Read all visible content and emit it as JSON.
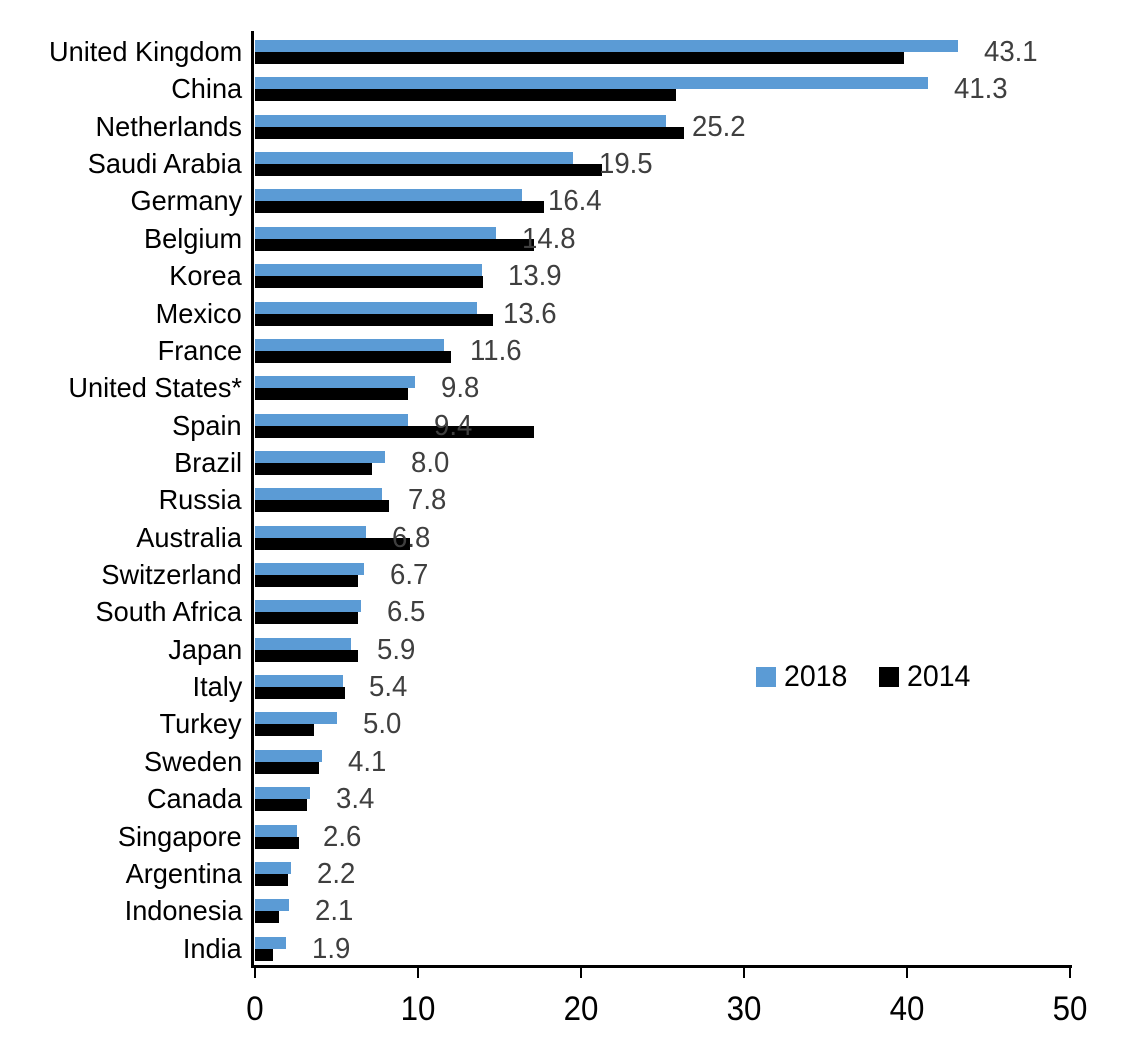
{
  "chart_data": {
    "type": "bar",
    "orientation": "horizontal",
    "title": "",
    "xlabel": "",
    "ylabel": "",
    "xlim": [
      0,
      50
    ],
    "xticks": [
      "0",
      "10",
      "20",
      "30",
      "40",
      "50"
    ],
    "grid": false,
    "legend_position": "middle-right",
    "axis_color": "#000000",
    "categories": [
      "United Kingdom",
      "China",
      "Netherlands",
      "Saudi Arabia",
      "Germany",
      "Belgium",
      "Korea",
      "Mexico",
      "France",
      "United States*",
      "Spain",
      "Brazil",
      "Russia",
      "Australia",
      "Switzerland",
      "South Africa",
      "Japan",
      "Italy",
      "Turkey",
      "Sweden",
      "Canada",
      "Singapore",
      "Argentina",
      "Indonesia",
      "India"
    ],
    "series": [
      {
        "name": "2018",
        "color": "#5B9BD5",
        "values": [
          43.1,
          41.3,
          25.2,
          19.5,
          16.4,
          14.8,
          13.9,
          13.6,
          11.6,
          9.8,
          9.4,
          8.0,
          7.8,
          6.8,
          6.7,
          6.5,
          5.9,
          5.4,
          5.0,
          4.1,
          3.4,
          2.6,
          2.2,
          2.1,
          1.9
        ]
      },
      {
        "name": "2014",
        "color": "#000000",
        "values": [
          39.8,
          25.8,
          26.3,
          21.3,
          17.7,
          17.1,
          14.0,
          14.6,
          12.0,
          9.4,
          17.1,
          7.2,
          8.2,
          9.5,
          6.3,
          6.3,
          6.3,
          5.5,
          3.6,
          3.9,
          3.2,
          2.7,
          2.0,
          1.5,
          1.1
        ]
      }
    ],
    "data_labels": {
      "for_series": "2018",
      "color": "#3F3F3F",
      "texts": [
        "43.1",
        "41.3",
        "25.2",
        "19.5",
        "16.4",
        "14.8",
        "13.9",
        "13.6",
        "11.6",
        "9.8",
        "9.4",
        "8.0",
        "7.8",
        "6.8",
        "6.7",
        "6.5",
        "5.9",
        "5.4",
        "5.0",
        "4.1",
        "3.4",
        "2.6",
        "2.2",
        "2.1",
        "1.9"
      ]
    }
  }
}
